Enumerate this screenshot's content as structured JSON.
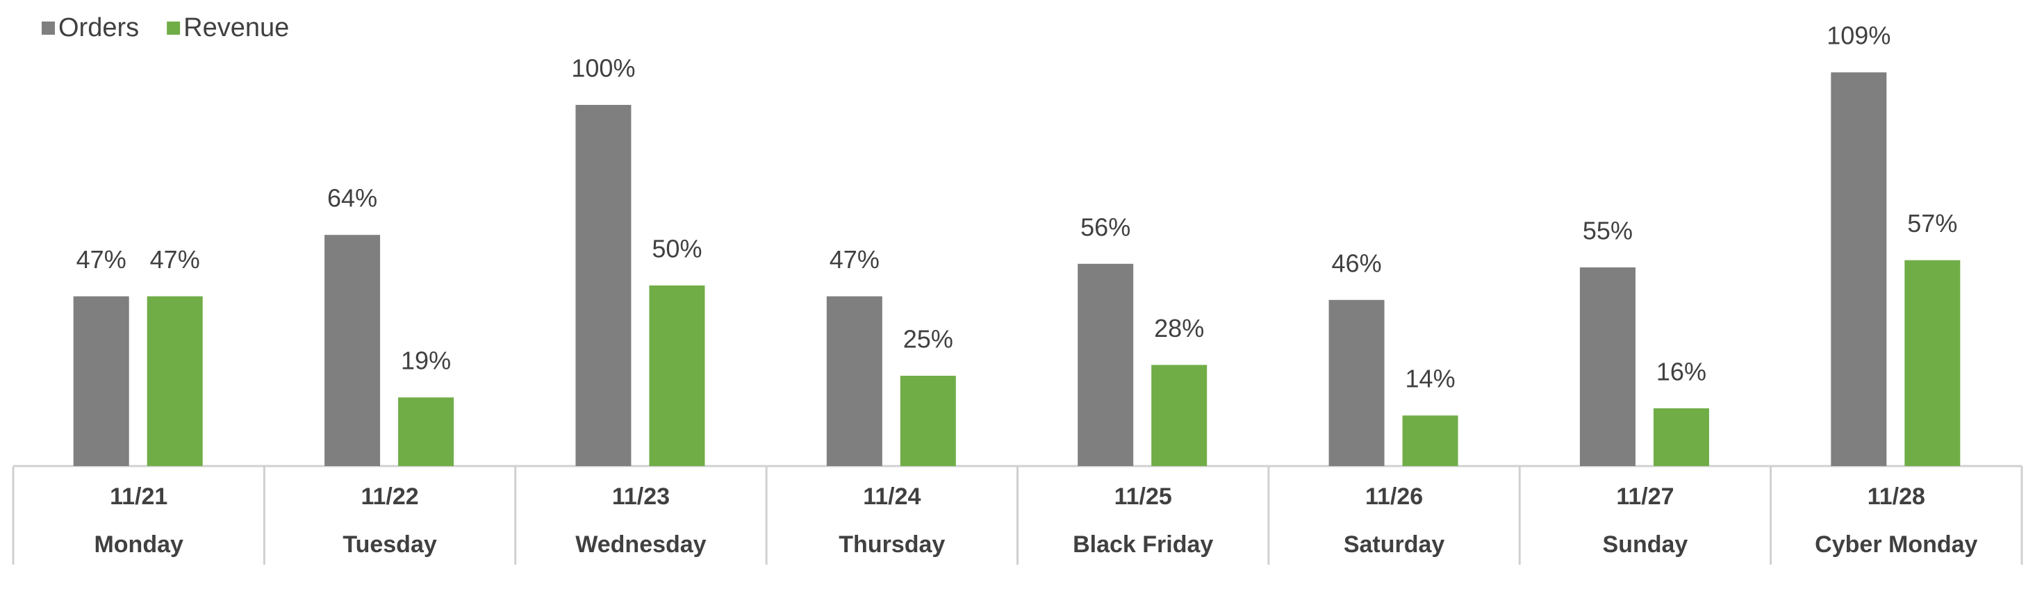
{
  "chart_data": {
    "type": "bar",
    "categories": [
      "11/21",
      "11/22",
      "11/23",
      "11/24",
      "11/25",
      "11/26",
      "11/27",
      "11/28"
    ],
    "category_days": [
      "Monday",
      "Tuesday",
      "Wednesday",
      "Thursday",
      "Black Friday",
      "Saturday",
      "Sunday",
      "Cyber Monday"
    ],
    "series": [
      {
        "name": "Orders",
        "color": "#7f7f7f",
        "values": [
          47,
          64,
          100,
          47,
          56,
          46,
          55,
          109
        ],
        "value_labels": [
          "47%",
          "64%",
          "100%",
          "47%",
          "56%",
          "46%",
          "55%",
          "109%"
        ]
      },
      {
        "name": "Revenue",
        "color": "#70ad47",
        "values": [
          47,
          19,
          50,
          25,
          28,
          14,
          16,
          57
        ],
        "value_labels": [
          "47%",
          "19%",
          "50%",
          "25%",
          "28%",
          "14%",
          "16%",
          "57%"
        ]
      }
    ],
    "legend": "top-left"
  }
}
